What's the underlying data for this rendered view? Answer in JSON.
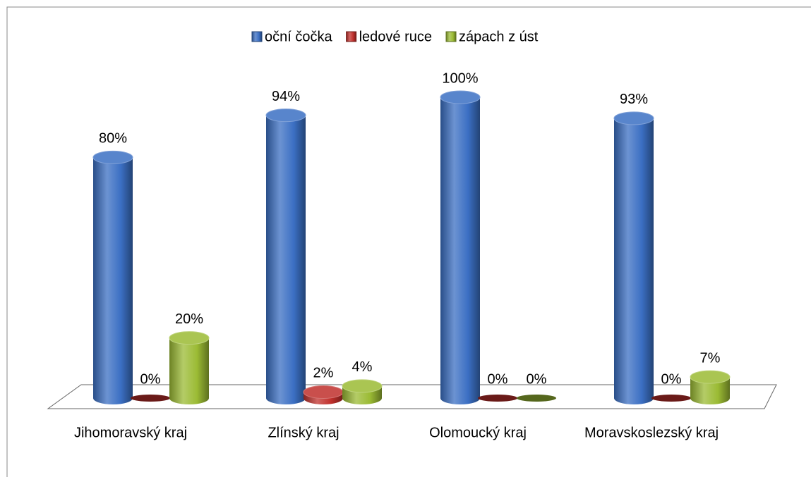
{
  "chart_data": {
    "type": "bar",
    "categories": [
      "Jihomoravský kraj",
      "Zlínský kraj",
      "Olomoucký kraj",
      "Moravskoslezský kraj"
    ],
    "series": [
      {
        "name": "oční čočka",
        "color": "#3b6fc3",
        "values": [
          80,
          94,
          100,
          93
        ],
        "value_labels": [
          "80%",
          "94%",
          "100%",
          "93%"
        ]
      },
      {
        "name": "ledové ruce",
        "color": "#c0302c",
        "values": [
          0,
          2,
          0,
          0
        ],
        "value_labels": [
          "0%",
          "2%",
          "0%",
          "0%"
        ]
      },
      {
        "name": "zápach z úst",
        "color": "#9bbb34",
        "values": [
          20,
          4,
          0,
          7
        ],
        "value_labels": [
          "20%",
          "4%",
          "0%",
          "7%"
        ]
      }
    ],
    "ylim": [
      0,
      100
    ],
    "legend": "top"
  }
}
